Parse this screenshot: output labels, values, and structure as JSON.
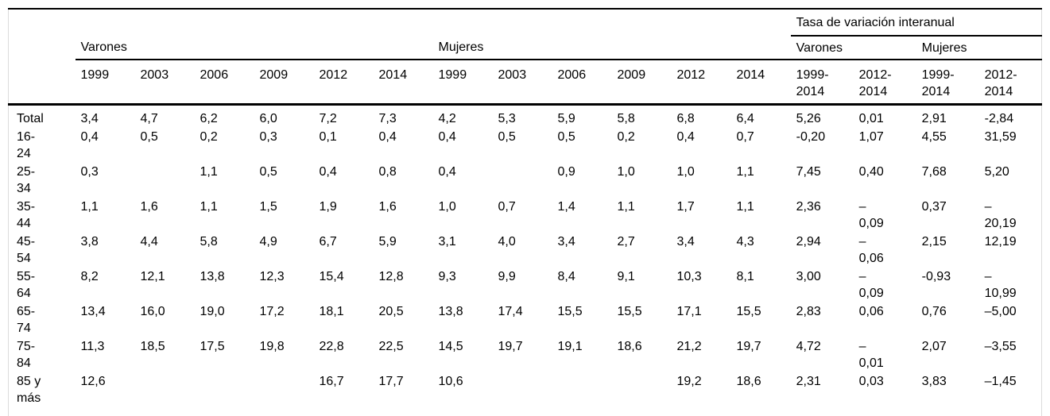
{
  "table": {
    "tasa_title": "Tasa de variación interanual",
    "groups": [
      "Varones",
      "Mujeres",
      "Varones",
      "Mujeres"
    ],
    "years": [
      "1999",
      "2003",
      "2006",
      "2009",
      "2012",
      "2014"
    ],
    "ranges": [
      "1999-\n2014",
      "2012-\n2014",
      "1999-\n2014",
      "2012-\n2014"
    ],
    "rows": [
      {
        "label": "Total",
        "varones": [
          "3,4",
          "4,7",
          "6,2",
          "6,0",
          "7,2",
          "7,3"
        ],
        "mujeres": [
          "4,2",
          "5,3",
          "5,9",
          "5,8",
          "6,8",
          "6,4"
        ],
        "tasa": [
          "5,26",
          "0,01",
          "2,91",
          "-2,84"
        ]
      },
      {
        "label": "16-\n24",
        "varones": [
          "0,4",
          "0,5",
          "0,2",
          "0,3",
          "0,1",
          "0,4"
        ],
        "mujeres": [
          "0,4",
          "0,5",
          "0,5",
          "0,2",
          "0,4",
          "0,7"
        ],
        "tasa": [
          "-0,20",
          "1,07",
          "4,55",
          "31,59"
        ]
      },
      {
        "label": "25-\n34",
        "varones": [
          "0,3",
          "",
          "1,1",
          "0,5",
          "0,4",
          "0,8"
        ],
        "mujeres": [
          "0,4",
          "",
          "0,9",
          "1,0",
          "1,0",
          "1,1"
        ],
        "tasa": [
          "7,45",
          "0,40",
          "7,68",
          "5,20"
        ]
      },
      {
        "label": "35-\n44",
        "varones": [
          "1,1",
          "1,6",
          "1,1",
          "1,5",
          "1,9",
          "1,6"
        ],
        "mujeres": [
          "1,0",
          "0,7",
          "1,4",
          "1,1",
          "1,7",
          "1,1"
        ],
        "tasa": [
          "2,36",
          "–\n0,09",
          "0,37",
          "–\n20,19"
        ]
      },
      {
        "label": "45-\n54",
        "varones": [
          "3,8",
          "4,4",
          "5,8",
          "4,9",
          "6,7",
          "5,9"
        ],
        "mujeres": [
          "3,1",
          "4,0",
          "3,4",
          "2,7",
          "3,4",
          "4,3"
        ],
        "tasa": [
          "2,94",
          "–\n0,06",
          "2,15",
          "12,19"
        ]
      },
      {
        "label": "55-\n64",
        "varones": [
          "8,2",
          "12,1",
          "13,8",
          "12,3",
          "15,4",
          "12,8"
        ],
        "mujeres": [
          "9,3",
          "9,9",
          "8,4",
          "9,1",
          "10,3",
          "8,1"
        ],
        "tasa": [
          "3,00",
          "–\n0,09",
          "-0,93",
          "–\n10,99"
        ]
      },
      {
        "label": "65-\n74",
        "varones": [
          "13,4",
          "16,0",
          "19,0",
          "17,2",
          "18,1",
          "20,5"
        ],
        "mujeres": [
          "13,8",
          "17,4",
          "15,5",
          "15,5",
          "17,1",
          "15,5"
        ],
        "tasa": [
          "2,83",
          "0,06",
          "0,76",
          "–5,00"
        ]
      },
      {
        "label": "75-\n84",
        "varones": [
          "11,3",
          "18,5",
          "17,5",
          "19,8",
          "22,8",
          "22,5"
        ],
        "mujeres": [
          "14,5",
          "19,7",
          "19,1",
          "18,6",
          "21,2",
          "19,7"
        ],
        "tasa": [
          "4,72",
          "–\n0,01",
          "2,07",
          "–3,55"
        ]
      },
      {
        "label": "85 y\nmás",
        "varones": [
          "12,6",
          "",
          "",
          "",
          "16,7",
          "17,7"
        ],
        "mujeres": [
          "10,6",
          "",
          "",
          "",
          "19,2",
          "18,6"
        ],
        "tasa": [
          "2,31",
          "0,03",
          "3,83",
          "–1,45"
        ]
      }
    ]
  }
}
